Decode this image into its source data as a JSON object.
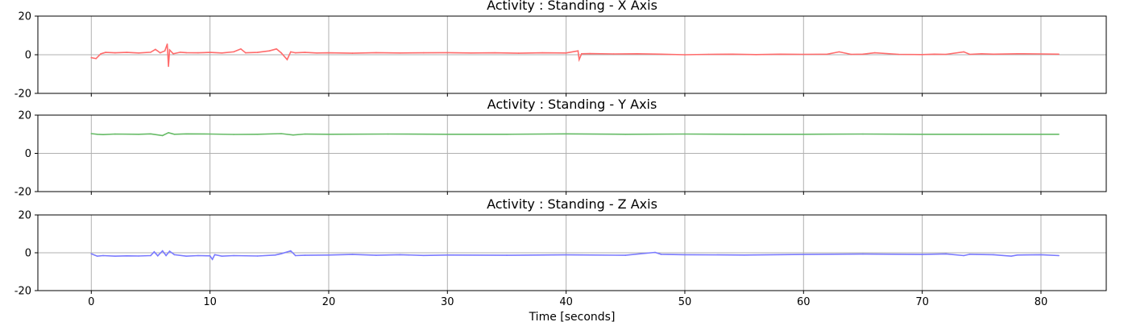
{
  "chart_data": [
    {
      "type": "line",
      "title": "Activity : Standing - X Axis",
      "xlabel": "",
      "ylabel": "",
      "xlim": [
        -4.5,
        85.5
      ],
      "ylim": [
        -20,
        20
      ],
      "x_ticks": [
        0,
        10,
        20,
        30,
        40,
        50,
        60,
        70,
        80
      ],
      "x_tick_labels_visible": false,
      "y_ticks": [
        -20,
        0,
        20
      ],
      "grid": true,
      "color": "#ff6b6b",
      "x": [
        0,
        0.4,
        0.8,
        1.2,
        2,
        3,
        4,
        5,
        5.4,
        5.8,
        6.2,
        6.4,
        6.5,
        6.6,
        6.9,
        7.5,
        8,
        9,
        10,
        11,
        12,
        12.6,
        13,
        14,
        15,
        15.6,
        16,
        16.5,
        16.8,
        17.2,
        18,
        19,
        20,
        22,
        24,
        26,
        28,
        30,
        32,
        34,
        36,
        38,
        40,
        41,
        41.1,
        41.3,
        42,
        44,
        46,
        48,
        50,
        52,
        54,
        56,
        58,
        60,
        62,
        63,
        64,
        65,
        66,
        68,
        70,
        71,
        72,
        73.5,
        74,
        75,
        76,
        78,
        80,
        81.5
      ],
      "values": [
        -1.5,
        -2.0,
        0.5,
        1.2,
        1.0,
        1.2,
        0.9,
        1.3,
        2.8,
        1.0,
        2.0,
        5.5,
        -6.0,
        2.5,
        0.5,
        1.3,
        1.1,
        1.0,
        1.2,
        0.9,
        1.5,
        3.0,
        1.0,
        1.2,
        2.0,
        3.0,
        1.0,
        -2.5,
        1.5,
        1.0,
        1.2,
        0.9,
        1.0,
        0.8,
        1.1,
        0.9,
        1.0,
        1.1,
        0.9,
        1.0,
        0.8,
        1.0,
        0.9,
        2.0,
        -2.5,
        0.5,
        0.6,
        0.4,
        0.5,
        0.3,
        0.0,
        0.2,
        0.3,
        0.1,
        0.3,
        0.2,
        0.3,
        1.5,
        0.2,
        0.3,
        1.0,
        0.2,
        0.1,
        0.3,
        0.2,
        1.5,
        0.2,
        0.5,
        0.3,
        0.5,
        0.4,
        0.3
      ]
    },
    {
      "type": "line",
      "title": "Activity : Standing - Y Axis",
      "xlabel": "",
      "ylabel": "",
      "xlim": [
        -4.5,
        85.5
      ],
      "ylim": [
        -20,
        20
      ],
      "x_ticks": [
        0,
        10,
        20,
        30,
        40,
        50,
        60,
        70,
        80
      ],
      "x_tick_labels_visible": false,
      "y_ticks": [
        -20,
        0,
        20
      ],
      "grid": true,
      "color": "#66bb66",
      "x": [
        0,
        0.5,
        1,
        2,
        4,
        5,
        6,
        6.5,
        7,
        8,
        10,
        12,
        14,
        16,
        17,
        18,
        20,
        25,
        30,
        35,
        40,
        45,
        50,
        55,
        60,
        65,
        70,
        75,
        80,
        81.5
      ],
      "values": [
        10.3,
        10.0,
        9.8,
        10.1,
        10.0,
        10.2,
        9.3,
        10.8,
        10.0,
        10.2,
        10.1,
        9.9,
        10.0,
        10.3,
        9.6,
        10.1,
        10.0,
        10.1,
        10.0,
        10.0,
        10.2,
        10.0,
        10.1,
        10.0,
        10.0,
        10.1,
        10.0,
        10.0,
        10.0,
        10.0
      ]
    },
    {
      "type": "line",
      "title": "Activity : Standing - Z Axis",
      "xlabel": "Time [seconds]",
      "ylabel": "",
      "xlim": [
        -4.5,
        85.5
      ],
      "ylim": [
        -20,
        20
      ],
      "x_ticks": [
        0,
        10,
        20,
        30,
        40,
        50,
        60,
        70,
        80
      ],
      "x_tick_labels_visible": true,
      "y_ticks": [
        -20,
        0,
        20
      ],
      "grid": true,
      "color": "#7a7aff",
      "x": [
        0,
        0.5,
        1,
        2,
        3,
        4,
        5,
        5.3,
        5.6,
        6,
        6.3,
        6.6,
        7,
        8,
        9,
        10,
        10.2,
        10.4,
        11,
        12,
        14,
        15.5,
        16,
        16.8,
        17.2,
        18,
        20,
        22,
        24,
        26,
        28,
        30,
        35,
        40,
        45,
        47.5,
        48,
        50,
        55,
        60,
        65,
        70,
        72,
        73.5,
        74,
        76,
        77.5,
        78,
        80,
        81.5
      ],
      "values": [
        -0.5,
        -1.8,
        -1.5,
        -1.8,
        -1.6,
        -1.7,
        -1.5,
        0.5,
        -1.6,
        1.0,
        -1.5,
        0.8,
        -1.0,
        -1.8,
        -1.5,
        -1.6,
        -3.5,
        -1.0,
        -1.8,
        -1.5,
        -1.7,
        -1.2,
        -0.5,
        1.0,
        -1.5,
        -1.3,
        -1.2,
        -0.9,
        -1.3,
        -1.0,
        -1.4,
        -1.2,
        -1.3,
        -1.1,
        -1.3,
        0.2,
        -0.8,
        -1.0,
        -1.2,
        -0.9,
        -0.7,
        -0.9,
        -0.6,
        -1.5,
        -0.8,
        -1.0,
        -1.8,
        -1.2,
        -1.0,
        -1.5
      ]
    }
  ]
}
